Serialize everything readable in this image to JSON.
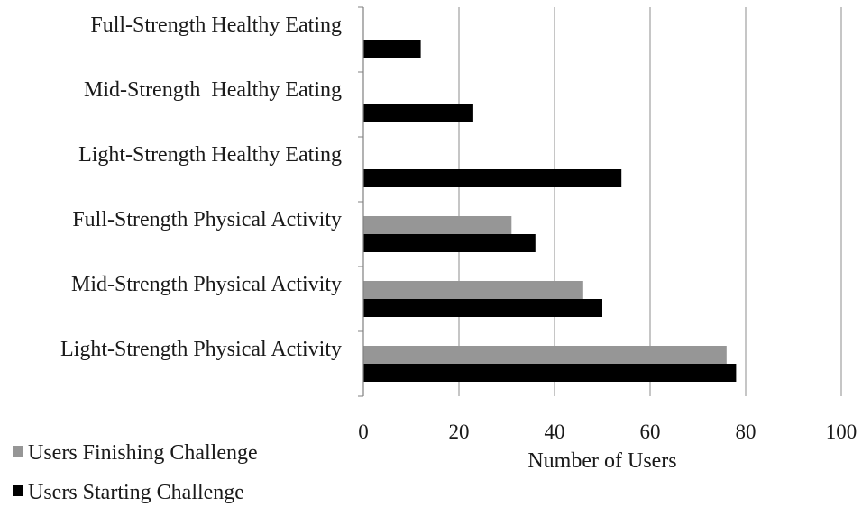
{
  "chart_data": {
    "type": "bar",
    "orientation": "horizontal",
    "title": "",
    "xlabel": "Number of Users",
    "ylabel": "",
    "xlim": [
      0,
      100
    ],
    "xticks": [
      0,
      20,
      40,
      60,
      80,
      100
    ],
    "grid": "vertical",
    "legend_position": "bottom-left",
    "categories": [
      "Full-Strength Healthy Eating",
      "Mid-Strength  Healthy Eating",
      "Light-Strength Healthy Eating",
      "Full-Strength Physical Activity",
      "Mid-Strength Physical Activity",
      "Light-Strength Physical Activity"
    ],
    "series": [
      {
        "name": "Users Finishing Challenge",
        "color": "#969696",
        "values": [
          0,
          0,
          0,
          31,
          46,
          76
        ]
      },
      {
        "name": "Users Starting Challenge",
        "color": "#000000",
        "values": [
          12,
          23,
          54,
          36,
          50,
          78
        ]
      }
    ]
  }
}
